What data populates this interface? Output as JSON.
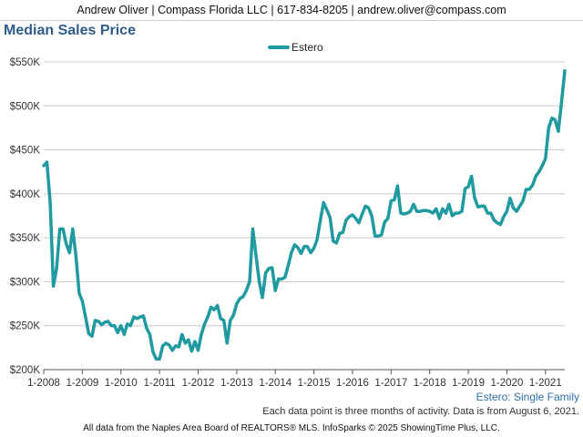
{
  "header": {
    "contact": "Andrew Oliver | Compass Florida LLC | 617-834-8205 | andrew.oliver@compass.com"
  },
  "colors": {
    "series": "#1f9aa0",
    "title": "#2f5d8a",
    "grid": "#c8c8c8",
    "region": "#2f6fa8"
  },
  "chart_data": {
    "type": "line",
    "title": "Median Sales Price",
    "legend": {
      "placement": "top-center",
      "entries": [
        "Estero"
      ]
    },
    "series": [
      {
        "name": "Estero",
        "x": [
          2008.0,
          2008.083,
          2008.167,
          2008.25,
          2008.333,
          2008.417,
          2008.5,
          2008.583,
          2008.667,
          2008.75,
          2008.833,
          2008.917,
          2009.0,
          2009.083,
          2009.167,
          2009.25,
          2009.333,
          2009.417,
          2009.5,
          2009.583,
          2009.667,
          2009.75,
          2009.833,
          2009.917,
          2010.0,
          2010.083,
          2010.167,
          2010.25,
          2010.333,
          2010.417,
          2010.5,
          2010.583,
          2010.667,
          2010.75,
          2010.833,
          2010.917,
          2011.0,
          2011.083,
          2011.167,
          2011.25,
          2011.333,
          2011.417,
          2011.5,
          2011.583,
          2011.667,
          2011.75,
          2011.833,
          2011.917,
          2012.0,
          2012.083,
          2012.167,
          2012.25,
          2012.333,
          2012.417,
          2012.5,
          2012.583,
          2012.667,
          2012.75,
          2012.833,
          2012.917,
          2013.0,
          2013.083,
          2013.167,
          2013.25,
          2013.333,
          2013.417,
          2013.5,
          2013.583,
          2013.667,
          2013.75,
          2013.833,
          2013.917,
          2014.0,
          2014.083,
          2014.167,
          2014.25,
          2014.333,
          2014.417,
          2014.5,
          2014.583,
          2014.667,
          2014.75,
          2014.833,
          2014.917,
          2015.0,
          2015.083,
          2015.167,
          2015.25,
          2015.333,
          2015.417,
          2015.5,
          2015.583,
          2015.667,
          2015.75,
          2015.833,
          2015.917,
          2016.0,
          2016.083,
          2016.167,
          2016.25,
          2016.333,
          2016.417,
          2016.5,
          2016.583,
          2016.667,
          2016.75,
          2016.833,
          2016.917,
          2017.0,
          2017.083,
          2017.167,
          2017.25,
          2017.333,
          2017.417,
          2017.5,
          2017.583,
          2017.667,
          2017.75,
          2017.833,
          2017.917,
          2018.0,
          2018.083,
          2018.167,
          2018.25,
          2018.333,
          2018.417,
          2018.5,
          2018.583,
          2018.667,
          2018.75,
          2018.833,
          2018.917,
          2019.0,
          2019.083,
          2019.167,
          2019.25,
          2019.333,
          2019.417,
          2019.5,
          2019.583,
          2019.667,
          2019.75,
          2019.833,
          2019.917,
          2020.0,
          2020.083,
          2020.167,
          2020.25,
          2020.333,
          2020.417,
          2020.5,
          2020.583,
          2020.667,
          2020.75,
          2020.833,
          2020.917,
          2021.0,
          2021.083,
          2021.167,
          2021.25,
          2021.333,
          2021.417,
          2021.5
        ],
        "values": [
          432000,
          436000,
          390000,
          295000,
          315000,
          360000,
          360000,
          343000,
          333000,
          360000,
          330000,
          287000,
          278000,
          260000,
          241000,
          238000,
          256000,
          255000,
          251000,
          254000,
          255000,
          250000,
          250000,
          242000,
          250000,
          240000,
          252000,
          250000,
          260000,
          258000,
          260000,
          261000,
          247000,
          240000,
          220000,
          212000,
          212000,
          227000,
          230000,
          228000,
          222000,
          227000,
          226000,
          240000,
          230000,
          234000,
          221000,
          232000,
          222000,
          240000,
          252000,
          260000,
          271000,
          268000,
          273000,
          258000,
          256000,
          230000,
          256000,
          262000,
          275000,
          281000,
          283000,
          290000,
          300000,
          360000,
          330000,
          300000,
          282000,
          310000,
          315000,
          316000,
          290000,
          303000,
          303000,
          305000,
          318000,
          333000,
          342000,
          339000,
          332000,
          340000,
          340000,
          333000,
          338000,
          348000,
          370000,
          390000,
          382000,
          373000,
          346000,
          344000,
          355000,
          356000,
          370000,
          374000,
          376000,
          372000,
          367000,
          377000,
          386000,
          384000,
          375000,
          352000,
          352000,
          353000,
          368000,
          372000,
          392000,
          393000,
          409000,
          378000,
          377000,
          378000,
          380000,
          388000,
          380000,
          380000,
          381000,
          381000,
          380000,
          378000,
          383000,
          372000,
          383000,
          378000,
          388000,
          375000,
          378000,
          378000,
          380000,
          406000,
          408000,
          420000,
          395000,
          385000,
          386000,
          386000,
          378000,
          378000,
          370000,
          367000,
          365000,
          374000,
          380000,
          395000,
          384000,
          380000,
          386000,
          392000,
          405000,
          405000,
          410000,
          420000,
          425000,
          432000,
          440000,
          475000,
          486000,
          484000,
          471000,
          505000,
          540000
        ]
      }
    ],
    "yticks": [
      "$200K",
      "$250K",
      "$300K",
      "$350K",
      "$400K",
      "$450K",
      "$500K",
      "$550K"
    ],
    "ylim": [
      200000,
      550000
    ],
    "xticks": [
      "1-2008",
      "1-2009",
      "1-2010",
      "1-2011",
      "1-2012",
      "1-2013",
      "1-2014",
      "1-2015",
      "1-2016",
      "1-2017",
      "1-2018",
      "1-2019",
      "1-2020",
      "1-2021"
    ],
    "xlim": [
      2008.0,
      2021.5
    ],
    "grid": "horizontal"
  },
  "footer": {
    "region": "Estero: Single Family",
    "note": "Each data point is three months of activity. Data is from August 6, 2021.",
    "credits": "All data from the Naples Area Board of REALTORS® MLS. InfoSparks © 2025 ShowingTime Plus, LLC."
  }
}
